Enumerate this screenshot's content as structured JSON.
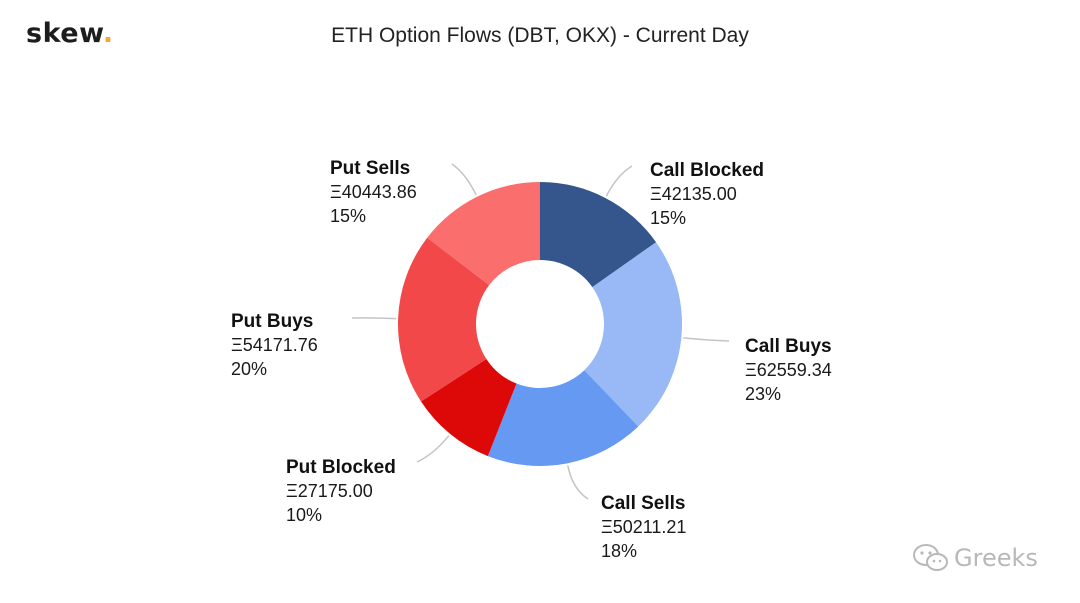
{
  "brand": {
    "name": "skew",
    "dot": "."
  },
  "watermark": {
    "text": "Greeks",
    "icon": "wechat-icon"
  },
  "chart_data": {
    "type": "pie",
    "style": "donut",
    "title": "ETH Option Flows (DBT, OKX) - Current Day",
    "start_angle": "12 o'clock, clockwise",
    "slices": [
      {
        "key": "call-blocked",
        "label": "Call Blocked",
        "value": 42135.0,
        "value_text": "Ξ42135.00",
        "percent": 15,
        "percent_text": "15%",
        "color": "#34568c"
      },
      {
        "key": "call-buys",
        "label": "Call Buys",
        "value": 62559.34,
        "value_text": "Ξ62559.34",
        "percent": 23,
        "percent_text": "23%",
        "color": "#98b9f5"
      },
      {
        "key": "call-sells",
        "label": "Call Sells",
        "value": 50211.21,
        "value_text": "Ξ50211.21",
        "percent": 18,
        "percent_text": "18%",
        "color": "#6699f1"
      },
      {
        "key": "put-blocked",
        "label": "Put Blocked",
        "value": 27175.0,
        "value_text": "Ξ27175.00",
        "percent": 10,
        "percent_text": "10%",
        "color": "#dd0808"
      },
      {
        "key": "put-buys",
        "label": "Put Buys",
        "value": 54171.76,
        "value_text": "Ξ54171.76",
        "percent": 20,
        "percent_text": "20%",
        "color": "#f2484a"
      },
      {
        "key": "put-sells",
        "label": "Put Sells",
        "value": 40443.86,
        "value_text": "Ξ40443.86",
        "percent": 15,
        "percent_text": "15%",
        "color": "#fa6e6e"
      }
    ]
  }
}
